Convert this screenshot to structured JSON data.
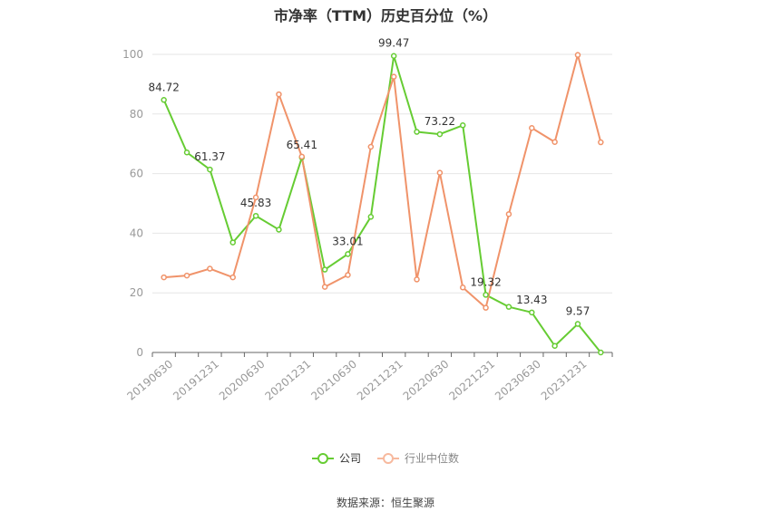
{
  "chart_data": {
    "type": "line",
    "title": "市净率（TTM）历史百分位（%）",
    "x": [
      "20190630",
      "20190930",
      "20191231",
      "20200331",
      "20200630",
      "20200930",
      "20201231",
      "20210331",
      "20210630",
      "20210930",
      "20211231",
      "20220331",
      "20220630",
      "20220930",
      "20221231",
      "20230331",
      "20230630",
      "20230930",
      "20231231",
      "20240331"
    ],
    "x_tick_labels": [
      "20190630",
      "20191231",
      "20200630",
      "20201231",
      "20210630",
      "20211231",
      "20220630",
      "20221231",
      "20230630",
      "20231231"
    ],
    "ylim": [
      0,
      100
    ],
    "y_ticks": [
      0,
      20,
      40,
      60,
      80,
      100
    ],
    "grid": true,
    "legend_position": "bottom",
    "series": [
      {
        "name": "公司",
        "color": "#66cc33",
        "values": [
          84.72,
          67.1,
          61.37,
          36.9,
          45.83,
          41.2,
          65.41,
          27.8,
          33.01,
          45.5,
          99.47,
          74.0,
          73.22,
          76.2,
          19.32,
          15.3,
          13.43,
          2.2,
          9.57,
          0.0
        ],
        "labels": [
          "84.72",
          null,
          "61.37",
          null,
          "45.83",
          null,
          "65.41",
          null,
          "33.01",
          null,
          "99.47",
          null,
          "73.22",
          null,
          "19.32",
          null,
          "13.43",
          null,
          "9.57",
          null
        ]
      },
      {
        "name": "行业中位数",
        "color": "#f0936a",
        "values": [
          25.2,
          25.8,
          28.1,
          25.2,
          52.0,
          86.6,
          65.7,
          22.0,
          26.0,
          69.0,
          92.5,
          24.5,
          60.3,
          21.8,
          15.0,
          46.4,
          75.3,
          70.6,
          99.8,
          70.5
        ]
      }
    ]
  },
  "source": "数据来源：恒生聚源"
}
